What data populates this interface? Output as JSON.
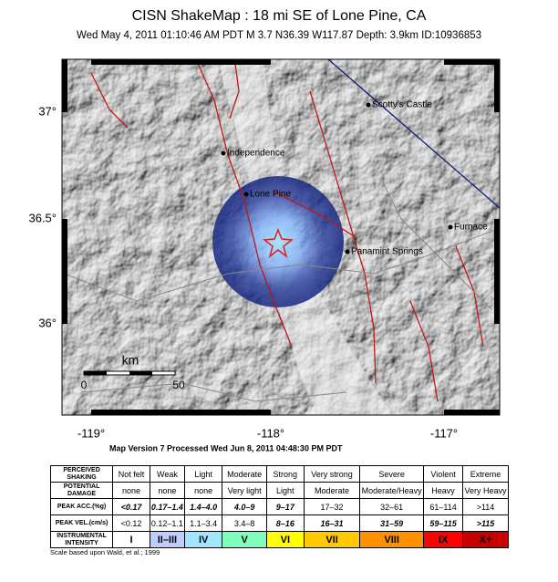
{
  "header": {
    "title": "CISN ShakeMap : 18 mi SE of Lone Pine, CA",
    "subtitle": "Wed May  4, 2011 01:10:46 AM PDT   M 3.7   N36.39 W117.87   Depth: 3.9km   ID:10936853"
  },
  "map": {
    "cities": [
      {
        "label": "Scotty's Castle"
      },
      {
        "label": "Independence"
      },
      {
        "label": "Lone Pine"
      },
      {
        "label": "Furnace"
      },
      {
        "label": "Panamint Springs"
      }
    ],
    "lat_labels": [
      "37°",
      "36.5°",
      "36°"
    ],
    "lon_labels": [
      "-119°",
      "-118°",
      "-117°"
    ],
    "scale": {
      "unit": "km",
      "start": "0",
      "end": "50"
    }
  },
  "version": "Map Version 7 Processed Wed Jun  8, 2011 04:48:30 PM PDT",
  "legend": {
    "rows": [
      [
        "PERCEIVED SHAKING",
        "Not felt",
        "Weak",
        "Light",
        "Moderate",
        "Strong",
        "Very strong",
        "Severe",
        "Violent",
        "Extreme"
      ],
      [
        "POTENTIAL DAMAGE",
        "none",
        "none",
        "none",
        "Very light",
        "Light",
        "Moderate",
        "Moderate/Heavy",
        "Heavy",
        "Very Heavy"
      ],
      [
        "PEAK ACC.(%g)",
        "<0.17",
        "0.17–1.4",
        "1.4–4.0",
        "4.0–9",
        "9–17",
        "17–32",
        "32–61",
        "61–114",
        ">114"
      ],
      [
        "PEAK VEL.(cm/s)",
        "<0.12",
        "0.12–1.1",
        "1.1–3.4",
        "3.4–8",
        "8–16",
        "16–31",
        "31–59",
        "59–115",
        ">115"
      ],
      [
        "INSTRUMENTAL INTENSITY",
        "I",
        "II–III",
        "IV",
        "V",
        "VI",
        "VII",
        "VIII",
        "IX",
        "X+"
      ]
    ],
    "intensity_colors": [
      "#ffffff",
      "#bfccff",
      "#a0e6ff",
      "#80ffbb",
      "#ffff00",
      "#ffc800",
      "#ff9100",
      "#ff0000",
      "#c80000"
    ]
  },
  "footnote": "Scale based upon Wald, et al.; 1999"
}
